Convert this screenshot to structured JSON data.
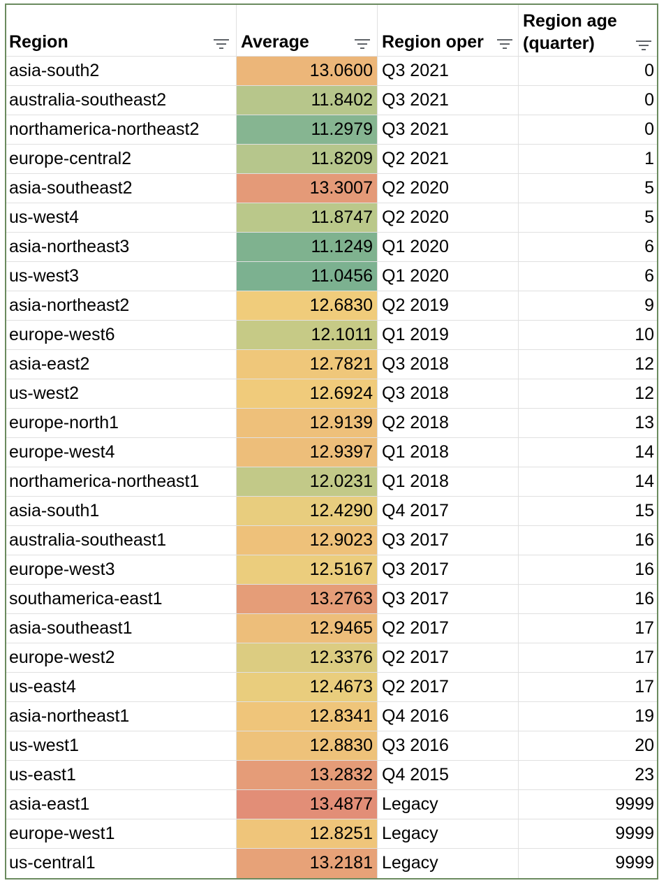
{
  "headers": {
    "region": "Region",
    "average": "Average",
    "region_oper": "Region oper",
    "region_age": "Region age (quarter)"
  },
  "rows": [
    {
      "region": "asia-south2",
      "average": "13.0600",
      "oper": "Q3 2021",
      "age": "0",
      "color": "#ecb679"
    },
    {
      "region": "australia-southeast2",
      "average": "11.8402",
      "oper": "Q3 2021",
      "age": "0",
      "color": "#b7c68b"
    },
    {
      "region": "northamerica-northeast2",
      "average": "11.2979",
      "oper": "Q3 2021",
      "age": "0",
      "color": "#86b591"
    },
    {
      "region": "europe-central2",
      "average": "11.8209",
      "oper": "Q2 2021",
      "age": "1",
      "color": "#b6c68c"
    },
    {
      "region": "asia-southeast2",
      "average": "13.3007",
      "oper": "Q2 2020",
      "age": "5",
      "color": "#e49a78"
    },
    {
      "region": "us-west4",
      "average": "11.8747",
      "oper": "Q2 2020",
      "age": "5",
      "color": "#bac88a"
    },
    {
      "region": "asia-northeast3",
      "average": "11.1249",
      "oper": "Q1 2020",
      "age": "6",
      "color": "#7fb28f"
    },
    {
      "region": "us-west3",
      "average": "11.0456",
      "oper": "Q1 2020",
      "age": "6",
      "color": "#7cb190"
    },
    {
      "region": "asia-northeast2",
      "average": "12.6830",
      "oper": "Q2 2019",
      "age": "9",
      "color": "#f0cc7b"
    },
    {
      "region": "europe-west6",
      "average": "12.1011",
      "oper": "Q1 2019",
      "age": "10",
      "color": "#c6ca86"
    },
    {
      "region": "asia-east2",
      "average": "12.7821",
      "oper": "Q3 2018",
      "age": "12",
      "color": "#efc77a"
    },
    {
      "region": "us-west2",
      "average": "12.6924",
      "oper": "Q3 2018",
      "age": "12",
      "color": "#f0cb7b"
    },
    {
      "region": "europe-north1",
      "average": "12.9139",
      "oper": "Q2 2018",
      "age": "13",
      "color": "#eec07a"
    },
    {
      "region": "europe-west4",
      "average": "12.9397",
      "oper": "Q1 2018",
      "age": "14",
      "color": "#edbe7a"
    },
    {
      "region": "northamerica-northeast1",
      "average": "12.0231",
      "oper": "Q1 2018",
      "age": "14",
      "color": "#c2c988"
    },
    {
      "region": "asia-south1",
      "average": "12.4290",
      "oper": "Q4 2017",
      "age": "15",
      "color": "#e8cd7e"
    },
    {
      "region": "australia-southeast1",
      "average": "12.9023",
      "oper": "Q3 2017",
      "age": "16",
      "color": "#eec17a"
    },
    {
      "region": "europe-west3",
      "average": "12.5167",
      "oper": "Q3 2017",
      "age": "16",
      "color": "#ebcd7d"
    },
    {
      "region": "southamerica-east1",
      "average": "13.2763",
      "oper": "Q3 2017",
      "age": "16",
      "color": "#e59d78"
    },
    {
      "region": "asia-southeast1",
      "average": "12.9465",
      "oper": "Q2 2017",
      "age": "17",
      "color": "#edbe7a"
    },
    {
      "region": "europe-west2",
      "average": "12.3376",
      "oper": "Q2 2017",
      "age": "17",
      "color": "#dccc81"
    },
    {
      "region": "us-east4",
      "average": "12.4673",
      "oper": "Q2 2017",
      "age": "17",
      "color": "#e9cd7d"
    },
    {
      "region": "asia-northeast1",
      "average": "12.8341",
      "oper": "Q4 2016",
      "age": "19",
      "color": "#efc57a"
    },
    {
      "region": "us-west1",
      "average": "12.8830",
      "oper": "Q3 2016",
      "age": "20",
      "color": "#eec27a"
    },
    {
      "region": "us-east1",
      "average": "13.2832",
      "oper": "Q4 2015",
      "age": "23",
      "color": "#e59c78"
    },
    {
      "region": "asia-east1",
      "average": "13.4877",
      "oper": "Legacy",
      "age": "9999",
      "color": "#e28e77"
    },
    {
      "region": "europe-west1",
      "average": "12.8251",
      "oper": "Legacy",
      "age": "9999",
      "color": "#efc57a"
    },
    {
      "region": "us-central1",
      "average": "13.2181",
      "oper": "Legacy",
      "age": "9999",
      "color": "#e7a278"
    }
  ]
}
